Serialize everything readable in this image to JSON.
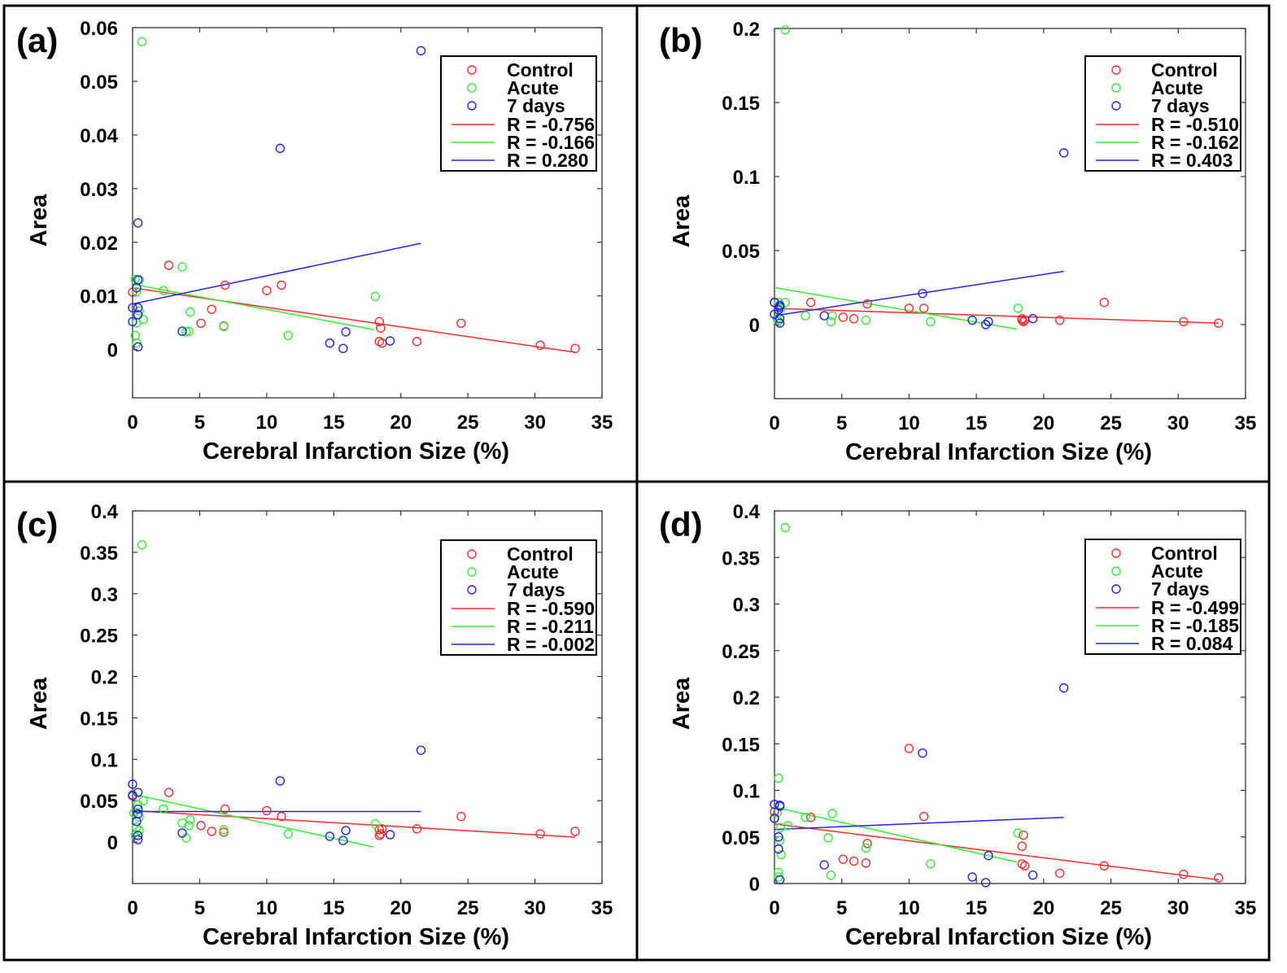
{
  "colors": {
    "Control": "#ff2a2a",
    "Acute": "#33ee33",
    "7 days": "#2222ee",
    "frame": "#000000"
  },
  "chart_data": [
    {
      "type": "scatter",
      "panel_label": "(a)",
      "xlabel": "Cerebral Infarction Size (%)",
      "ylabel": "Area",
      "xlim": [
        0,
        35
      ],
      "ylim": [
        -0.009,
        0.06
      ],
      "xticks": [
        0,
        5,
        10,
        15,
        20,
        25,
        30,
        35
      ],
      "yticks": [
        0,
        0.01,
        0.02,
        0.03,
        0.04,
        0.05,
        0.06
      ],
      "ytick_labels": [
        "0",
        "0.01",
        "0.02",
        "0.03",
        "0.04",
        "0.05",
        "0.06"
      ],
      "legend_position": "top-right",
      "series": [
        {
          "name": "Control",
          "color": "#ff2a2a",
          "fit_label": "R = -0.756",
          "fit": [
            [
              0,
              0.0115
            ],
            [
              33,
              -0.0005
            ]
          ],
          "points": [
            [
              0,
              0.0107
            ],
            [
              2.7,
              0.0157
            ],
            [
              5.1,
              0.0049
            ],
            [
              5.9,
              0.0075
            ],
            [
              6.9,
              0.012
            ],
            [
              6.8,
              0.0044
            ],
            [
              10,
              0.011
            ],
            [
              11.1,
              0.012
            ],
            [
              18.4,
              0.0052
            ],
            [
              18.5,
              0.004
            ],
            [
              18.4,
              0.0015
            ],
            [
              18.6,
              0.0012
            ],
            [
              21.2,
              0.0015
            ],
            [
              24.5,
              0.0049
            ],
            [
              30.4,
              0.0008
            ],
            [
              33,
              0.0002
            ]
          ]
        },
        {
          "name": "Acute",
          "color": "#33ee33",
          "fit_label": "R = -0.166",
          "fit": [
            [
              0,
              0.0122
            ],
            [
              18,
              0.0037
            ]
          ],
          "points": [
            [
              0.7,
              0.0574
            ],
            [
              3.7,
              0.0154
            ],
            [
              2.3,
              0.011
            ],
            [
              0.2,
              0.0131
            ],
            [
              0.5,
              0.013
            ],
            [
              0.3,
              0.0108
            ],
            [
              4.3,
              0.007
            ],
            [
              4.0,
              0.0033
            ],
            [
              4.2,
              0.0034
            ],
            [
              6.8,
              0.0043
            ],
            [
              11.6,
              0.0026
            ],
            [
              18.1,
              0.0099
            ],
            [
              0.8,
              0.0056
            ],
            [
              0.3,
              0.005
            ],
            [
              0.2,
              0.0026
            ],
            [
              0.3,
              0.0012
            ],
            [
              0.5,
              0.0072
            ]
          ]
        },
        {
          "name": "7 days",
          "color": "#2222ee",
          "fit_label": "R = 0.280",
          "fit": [
            [
              0,
              0.0085
            ],
            [
              21.5,
              0.0198
            ]
          ],
          "points": [
            [
              21.5,
              0.0557
            ],
            [
              11,
              0.0375
            ],
            [
              0.4,
              0.0236
            ],
            [
              0.4,
              0.013
            ],
            [
              0.3,
              0.0115
            ],
            [
              0,
              0.0078
            ],
            [
              0.4,
              0.0078
            ],
            [
              0.4,
              0.0065
            ],
            [
              0,
              0.0052
            ],
            [
              0.4,
              0.0005
            ],
            [
              3.7,
              0.0034
            ],
            [
              14.7,
              0.0012
            ],
            [
              15.9,
              0.0033
            ],
            [
              15.7,
              0.0002
            ],
            [
              19.2,
              0.0016
            ]
          ]
        }
      ]
    },
    {
      "type": "scatter",
      "panel_label": "(b)",
      "xlabel": "Cerebral Infarction Size (%)",
      "ylabel": "Area",
      "xlim": [
        0,
        35
      ],
      "ylim": [
        -0.05,
        0.2
      ],
      "xticks": [
        0,
        5,
        10,
        15,
        20,
        25,
        30,
        35
      ],
      "yticks": [
        0,
        0.05,
        0.1,
        0.15,
        0.2
      ],
      "ytick_labels": [
        "0",
        "0.05",
        "0.1",
        "0.15",
        "0.2"
      ],
      "legend_position": "top-right",
      "series": [
        {
          "name": "Control",
          "color": "#ff2a2a",
          "fit_label": "R = -0.510",
          "fit": [
            [
              0,
              0.011
            ],
            [
              33,
              0.001
            ]
          ],
          "points": [
            [
              0,
              0.015
            ],
            [
              2.7,
              0.015
            ],
            [
              5.1,
              0.005
            ],
            [
              5.9,
              0.004
            ],
            [
              6.9,
              0.014
            ],
            [
              10,
              0.011
            ],
            [
              11.1,
              0.011
            ],
            [
              18.4,
              0.004
            ],
            [
              18.5,
              0.002
            ],
            [
              18.4,
              0.003
            ],
            [
              18.6,
              0.003
            ],
            [
              21.2,
              0.003
            ],
            [
              24.5,
              0.015
            ],
            [
              30.4,
              0.002
            ],
            [
              33,
              0.001
            ]
          ]
        },
        {
          "name": "Acute",
          "color": "#33ee33",
          "fit_label": "R = -0.162",
          "fit": [
            [
              0,
              0.025
            ],
            [
              18,
              -0.003
            ]
          ],
          "points": [
            [
              0.8,
              0.199
            ],
            [
              18.1,
              0.011
            ],
            [
              11.6,
              0.002
            ],
            [
              6.8,
              0.003
            ],
            [
              4.2,
              0.002
            ],
            [
              4.3,
              0.006
            ],
            [
              2.3,
              0.006
            ],
            [
              0.8,
              0.015
            ],
            [
              0.3,
              0.015
            ],
            [
              0.2,
              0.004
            ],
            [
              0.5,
              0.011
            ],
            [
              0.3,
              0.002
            ]
          ]
        },
        {
          "name": "7 days",
          "color": "#2222ee",
          "fit_label": "R = 0.403",
          "fit": [
            [
              0,
              0.006
            ],
            [
              21.5,
              0.036
            ]
          ],
          "points": [
            [
              21.5,
              0.116
            ],
            [
              11,
              0.021
            ],
            [
              0,
              0.015
            ],
            [
              0.4,
              0.013
            ],
            [
              0.4,
              0.012
            ],
            [
              0.3,
              0.01
            ],
            [
              0,
              0.007
            ],
            [
              0.4,
              0.004
            ],
            [
              0.4,
              0.001
            ],
            [
              3.7,
              0.006
            ],
            [
              14.7,
              0.003
            ],
            [
              15.7,
              0
            ],
            [
              15.9,
              0.002
            ],
            [
              19.2,
              0.004
            ]
          ]
        }
      ]
    },
    {
      "type": "scatter",
      "panel_label": "(c)",
      "xlabel": "Cerebral Infarction Size (%)",
      "ylabel": "Area",
      "xlim": [
        0,
        35
      ],
      "ylim": [
        -0.05,
        0.4
      ],
      "xticks": [
        0,
        5,
        10,
        15,
        20,
        25,
        30,
        35
      ],
      "yticks": [
        0,
        0.05,
        0.1,
        0.15,
        0.2,
        0.25,
        0.3,
        0.35,
        0.4
      ],
      "ytick_labels": [
        "0",
        "0.05",
        "0.1",
        "0.15",
        "0.2",
        "0.25",
        "0.3",
        "0.35",
        "0.4"
      ],
      "legend_position": "top-right",
      "series": [
        {
          "name": "Control",
          "color": "#ff2a2a",
          "fit_label": "R = -0.590",
          "fit": [
            [
              0,
              0.038
            ],
            [
              33,
              0.006
            ]
          ],
          "points": [
            [
              0,
              0.057
            ],
            [
              2.7,
              0.06
            ],
            [
              5.1,
              0.02
            ],
            [
              5.9,
              0.013
            ],
            [
              6.9,
              0.04
            ],
            [
              6.8,
              0.012
            ],
            [
              10,
              0.038
            ],
            [
              11.1,
              0.031
            ],
            [
              18.4,
              0.015
            ],
            [
              18.5,
              0.01
            ],
            [
              18.4,
              0.008
            ],
            [
              18.6,
              0.016
            ],
            [
              21.2,
              0.016
            ],
            [
              24.5,
              0.031
            ],
            [
              30.4,
              0.01
            ],
            [
              33,
              0.013
            ]
          ]
        },
        {
          "name": "Acute",
          "color": "#33ee33",
          "fit_label": "R = -0.211",
          "fit": [
            [
              0,
              0.058
            ],
            [
              18,
              -0.006
            ]
          ],
          "points": [
            [
              0.7,
              0.359
            ],
            [
              3.7,
              0.023
            ],
            [
              2.3,
              0.04
            ],
            [
              0.5,
              0.03
            ],
            [
              0.4,
              0.045
            ],
            [
              0.8,
              0.05
            ],
            [
              4.3,
              0.027
            ],
            [
              4.0,
              0.005
            ],
            [
              4.2,
              0.02
            ],
            [
              6.8,
              0.015
            ],
            [
              11.6,
              0.01
            ],
            [
              18.1,
              0.022
            ],
            [
              0.3,
              0.018
            ],
            [
              0.2,
              0.008
            ],
            [
              0.5,
              0.014
            ],
            [
              0.1,
              0.035
            ]
          ]
        },
        {
          "name": "7 days",
          "color": "#2222ee",
          "fit_label": "R = -0.002",
          "fit": [
            [
              0,
              0.037
            ],
            [
              21.5,
              0.037
            ]
          ],
          "points": [
            [
              21.5,
              0.111
            ],
            [
              11,
              0.074
            ],
            [
              0,
              0.07
            ],
            [
              0.4,
              0.06
            ],
            [
              0,
              0.056
            ],
            [
              0.4,
              0.04
            ],
            [
              0.4,
              0.034
            ],
            [
              0.3,
              0.025
            ],
            [
              0.4,
              0.008
            ],
            [
              0.4,
              0.003
            ],
            [
              3.7,
              0.011
            ],
            [
              14.7,
              0.007
            ],
            [
              15.9,
              0.014
            ],
            [
              15.7,
              0.002
            ],
            [
              19.2,
              0.009
            ]
          ]
        }
      ]
    },
    {
      "type": "scatter",
      "panel_label": "(d)",
      "xlabel": "Cerebral Infarction Size (%)",
      "ylabel": "Area",
      "xlim": [
        0,
        35
      ],
      "ylim": [
        0,
        0.4
      ],
      "xticks": [
        0,
        5,
        10,
        15,
        20,
        25,
        30,
        35
      ],
      "yticks": [
        0,
        0.05,
        0.1,
        0.15,
        0.2,
        0.25,
        0.3,
        0.35,
        0.4
      ],
      "ytick_labels": [
        "0",
        "0.05",
        "0.1",
        "0.15",
        "0.2",
        "0.25",
        "0.3",
        "0.35",
        "0.4"
      ],
      "legend_position": "top-right",
      "series": [
        {
          "name": "Control",
          "color": "#ff2a2a",
          "fit_label": "R = -0.499",
          "fit": [
            [
              0,
              0.064
            ],
            [
              33,
              0.004
            ]
          ],
          "points": [
            [
              0,
              0.07
            ],
            [
              0,
              0.077
            ],
            [
              2.7,
              0.071
            ],
            [
              5.1,
              0.026
            ],
            [
              5.9,
              0.024
            ],
            [
              6.9,
              0.043
            ],
            [
              6.8,
              0.022
            ],
            [
              10,
              0.145
            ],
            [
              11.1,
              0.072
            ],
            [
              18.4,
              0.04
            ],
            [
              18.5,
              0.052
            ],
            [
              18.4,
              0.021
            ],
            [
              18.6,
              0.019
            ],
            [
              21.2,
              0.011
            ],
            [
              24.5,
              0.019
            ],
            [
              30.4,
              0.01
            ],
            [
              33,
              0.006
            ]
          ]
        },
        {
          "name": "Acute",
          "color": "#33ee33",
          "fit_label": "R = -0.185",
          "fit": [
            [
              0,
              0.082
            ],
            [
              18,
              0.023
            ]
          ],
          "points": [
            [
              0.8,
              0.382
            ],
            [
              4.3,
              0.075
            ],
            [
              2.3,
              0.071
            ],
            [
              0.3,
              0.113
            ],
            [
              0.4,
              0.046
            ],
            [
              0.45,
              0.06
            ],
            [
              0.5,
              0.031
            ],
            [
              4.2,
              0.009
            ],
            [
              4.0,
              0.049
            ],
            [
              6.8,
              0.038
            ],
            [
              11.6,
              0.021
            ],
            [
              18.1,
              0.054
            ],
            [
              0.3,
              0.012
            ],
            [
              0.3,
              0.007
            ],
            [
              1,
              0.062
            ],
            [
              0.2,
              0.076
            ]
          ]
        },
        {
          "name": "7 days",
          "color": "#2222ee",
          "fit_label": "R = 0.084",
          "fit": [
            [
              0,
              0.058
            ],
            [
              21.5,
              0.071
            ]
          ],
          "points": [
            [
              21.5,
              0.21
            ],
            [
              11,
              0.14
            ],
            [
              0,
              0.085
            ],
            [
              0.4,
              0.084
            ],
            [
              0.4,
              0.083
            ],
            [
              0,
              0.07
            ],
            [
              0.3,
              0.05
            ],
            [
              0.3,
              0.037
            ],
            [
              0.4,
              0.004
            ],
            [
              3.7,
              0.02
            ],
            [
              14.7,
              0.007
            ],
            [
              15.7,
              0.001
            ],
            [
              15.9,
              0.03
            ],
            [
              19.2,
              0.009
            ]
          ]
        }
      ]
    }
  ]
}
